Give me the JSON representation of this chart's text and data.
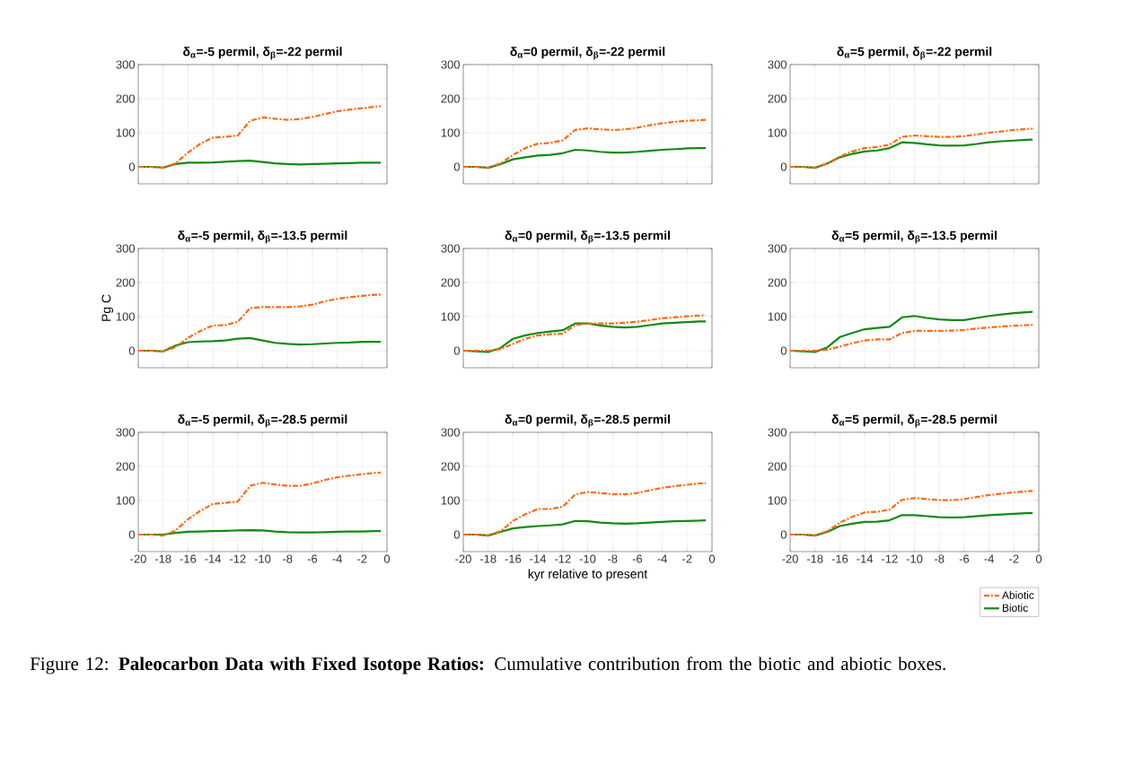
{
  "chart_data": [
    {
      "type": "line",
      "title": "δ$_{α}$=-5 permil, δ$_{β}$=-22 permil",
      "x": [
        -20,
        -19,
        -18,
        -17,
        -16,
        -15,
        -14,
        -13,
        -12,
        -11,
        -10,
        -9,
        -8,
        -7,
        -6,
        -5,
        -4,
        -3,
        -2,
        -1,
        -0.5
      ],
      "xlim": [
        -20,
        0
      ],
      "xticks": [
        -20,
        -18,
        -16,
        -14,
        -12,
        -10,
        -8,
        -6,
        -4,
        -2,
        0
      ],
      "ylim": [
        -50,
        300
      ],
      "yticks": [
        0,
        100,
        200,
        300
      ],
      "grid": true,
      "tick_labels": "y",
      "series": [
        {
          "color": "#ff6a13",
          "line_style": "dashed",
          "values": [
            0,
            0,
            -3,
            10,
            42,
            68,
            86,
            88,
            92,
            135,
            145,
            141,
            138,
            140,
            146,
            155,
            163,
            168,
            172,
            176,
            178
          ]
        },
        {
          "color": "#138a13",
          "line_style": "solid",
          "values": [
            0,
            0,
            -2,
            8,
            12,
            12,
            13,
            15,
            17,
            18,
            14,
            10,
            8,
            7,
            8,
            9,
            10,
            11,
            12,
            12,
            12
          ]
        }
      ],
      "annotations": [
        "Figure 12: **Paleocarbon Data with Fixed Isotope Ratios:** Cumulative contribution from the biotic and abiotic boxes."
      ]
    },
    {
      "type": "line",
      "title": "δ$_{α}$=0 permil, δ$_{β}$=-22 permil",
      "x": [
        -20,
        -19,
        -18,
        -17,
        -16,
        -15,
        -14,
        -13,
        -12,
        -11,
        -10,
        -9,
        -8,
        -7,
        -6,
        -5,
        -4,
        -3,
        -2,
        -1,
        -0.5
      ],
      "xlim": [
        -20,
        0
      ],
      "xticks": [
        -20,
        -18,
        -16,
        -14,
        -12,
        -10,
        -8,
        -6,
        -4,
        -2,
        0
      ],
      "ylim": [
        -50,
        300
      ],
      "yticks": [
        0,
        100,
        200,
        300
      ],
      "grid": true,
      "tick_labels": "y",
      "series": [
        {
          "color": "#ff6a13",
          "line_style": "dashed",
          "values": [
            0,
            0,
            -2,
            10,
            35,
            55,
            68,
            70,
            78,
            108,
            113,
            110,
            108,
            110,
            115,
            122,
            128,
            132,
            135,
            137,
            138
          ]
        },
        {
          "color": "#138a13",
          "line_style": "solid",
          "values": [
            0,
            0,
            -3,
            8,
            22,
            28,
            33,
            35,
            40,
            50,
            48,
            44,
            42,
            42,
            44,
            47,
            50,
            52,
            54,
            55,
            55
          ]
        }
      ]
    },
    {
      "type": "line",
      "title": "δ$_{α}$=5 permil, δ$_{β}$=-22 permil",
      "x": [
        -20,
        -19,
        -18,
        -17,
        -16,
        -15,
        -14,
        -13,
        -12,
        -11,
        -10,
        -9,
        -8,
        -7,
        -6,
        -5,
        -4,
        -3,
        -2,
        -1,
        -0.5
      ],
      "xlim": [
        -20,
        0
      ],
      "xticks": [
        -20,
        -18,
        -16,
        -14,
        -12,
        -10,
        -8,
        -6,
        -4,
        -2,
        0
      ],
      "ylim": [
        -50,
        300
      ],
      "yticks": [
        0,
        100,
        200,
        300
      ],
      "grid": true,
      "tick_labels": "y",
      "series": [
        {
          "color": "#ff6a13",
          "line_style": "dashed",
          "values": [
            0,
            0,
            -2,
            10,
            30,
            45,
            55,
            58,
            65,
            88,
            92,
            90,
            88,
            88,
            90,
            95,
            100,
            104,
            108,
            111,
            112
          ]
        },
        {
          "color": "#138a13",
          "line_style": "solid",
          "values": [
            0,
            0,
            -3,
            10,
            28,
            38,
            45,
            48,
            55,
            72,
            70,
            66,
            63,
            62,
            63,
            67,
            72,
            75,
            77,
            79,
            80
          ]
        }
      ]
    },
    {
      "type": "line",
      "title": "δ$_{α}$=-5 permil, δ$_{β}$=-13.5 permil",
      "ylabel": "Pg C",
      "x": [
        -20,
        -19,
        -18,
        -17,
        -16,
        -15,
        -14,
        -13,
        -12,
        -11,
        -10,
        -9,
        -8,
        -7,
        -6,
        -5,
        -4,
        -3,
        -2,
        -1,
        -0.5
      ],
      "xlim": [
        -20,
        0
      ],
      "xticks": [
        -20,
        -18,
        -16,
        -14,
        -12,
        -10,
        -8,
        -6,
        -4,
        -2,
        0
      ],
      "ylim": [
        -50,
        300
      ],
      "yticks": [
        0,
        100,
        200,
        300
      ],
      "grid": true,
      "tick_labels": "y",
      "series": [
        {
          "color": "#ff6a13",
          "line_style": "dashed",
          "values": [
            0,
            0,
            -2,
            10,
            38,
            58,
            74,
            75,
            85,
            125,
            128,
            128,
            128,
            130,
            135,
            145,
            152,
            157,
            161,
            164,
            165
          ]
        },
        {
          "color": "#138a13",
          "line_style": "solid",
          "values": [
            0,
            0,
            -2,
            15,
            25,
            27,
            28,
            30,
            35,
            37,
            30,
            23,
            20,
            18,
            19,
            21,
            23,
            24,
            26,
            26,
            26
          ]
        }
      ]
    },
    {
      "type": "line",
      "title": "δ$_{α}$=0 permil, δ$_{β}$=-13.5 permil",
      "x": [
        -20,
        -19,
        -18,
        -17,
        -16,
        -15,
        -14,
        -13,
        -12,
        -11,
        -10,
        -9,
        -8,
        -7,
        -6,
        -5,
        -4,
        -3,
        -2,
        -1,
        -0.5
      ],
      "xlim": [
        -20,
        0
      ],
      "xticks": [
        -20,
        -18,
        -16,
        -14,
        -12,
        -10,
        -8,
        -6,
        -4,
        -2,
        0
      ],
      "ylim": [
        -50,
        300
      ],
      "yticks": [
        0,
        100,
        200,
        300
      ],
      "grid": true,
      "tick_labels": "y",
      "series": [
        {
          "color": "#ff6a13",
          "line_style": "dashed",
          "values": [
            0,
            0,
            0,
            5,
            20,
            35,
            45,
            48,
            50,
            75,
            80,
            80,
            80,
            82,
            85,
            90,
            95,
            98,
            101,
            103,
            104
          ]
        },
        {
          "color": "#138a13",
          "line_style": "solid",
          "values": [
            0,
            -2,
            -4,
            8,
            35,
            45,
            52,
            56,
            60,
            80,
            80,
            74,
            70,
            68,
            70,
            75,
            80,
            82,
            84,
            86,
            86
          ]
        }
      ]
    },
    {
      "type": "line",
      "title": "δ$_{α}$=5 permil, δ$_{β}$=-13.5 permil",
      "x": [
        -20,
        -19,
        -18,
        -17,
        -16,
        -15,
        -14,
        -13,
        -12,
        -11,
        -10,
        -9,
        -8,
        -7,
        -6,
        -5,
        -4,
        -3,
        -2,
        -1,
        -0.5
      ],
      "xlim": [
        -20,
        0
      ],
      "xticks": [
        -20,
        -18,
        -16,
        -14,
        -12,
        -10,
        -8,
        -6,
        -4,
        -2,
        0
      ],
      "ylim": [
        -50,
        300
      ],
      "yticks": [
        0,
        100,
        200,
        300
      ],
      "grid": true,
      "tick_labels": "y",
      "series": [
        {
          "color": "#ff6a13",
          "line_style": "dashed",
          "values": [
            0,
            0,
            0,
            3,
            12,
            22,
            30,
            33,
            33,
            52,
            58,
            58,
            58,
            59,
            61,
            65,
            68,
            71,
            73,
            75,
            76
          ]
        },
        {
          "color": "#138a13",
          "line_style": "solid",
          "values": [
            0,
            -2,
            -4,
            10,
            40,
            52,
            63,
            67,
            70,
            98,
            102,
            96,
            92,
            90,
            90,
            96,
            102,
            106,
            110,
            113,
            114
          ]
        }
      ]
    },
    {
      "type": "line",
      "title": "δ$_{α}$=-5 permil, δ$_{β}$=-28.5 permil",
      "x": [
        -20,
        -19,
        -18,
        -17,
        -16,
        -15,
        -14,
        -13,
        -12,
        -11,
        -10,
        -9,
        -8,
        -7,
        -6,
        -5,
        -4,
        -3,
        -2,
        -1,
        -0.5
      ],
      "xlim": [
        -20,
        0
      ],
      "xticks": [
        -20,
        -18,
        -16,
        -14,
        -12,
        -10,
        -8,
        -6,
        -4,
        -2,
        0
      ],
      "ylim": [
        -50,
        300
      ],
      "yticks": [
        0,
        100,
        200,
        300
      ],
      "grid": true,
      "series": [
        {
          "color": "#ff6a13",
          "line_style": "dashed",
          "values": [
            0,
            0,
            -3,
            12,
            45,
            70,
            90,
            93,
            97,
            143,
            152,
            147,
            143,
            143,
            150,
            160,
            168,
            173,
            177,
            181,
            182
          ]
        },
        {
          "color": "#138a13",
          "line_style": "solid",
          "values": [
            0,
            0,
            0,
            5,
            8,
            9,
            10,
            11,
            12,
            13,
            12,
            9,
            7,
            6,
            6,
            7,
            8,
            9,
            9,
            10,
            10
          ]
        }
      ]
    },
    {
      "type": "line",
      "title": "δ$_{α}$=0 permil, δ$_{β}$=-28.5 permil",
      "xlabel": "kyr relative to present",
      "x": [
        -20,
        -19,
        -18,
        -17,
        -16,
        -15,
        -14,
        -13,
        -12,
        -11,
        -10,
        -9,
        -8,
        -7,
        -6,
        -5,
        -4,
        -3,
        -2,
        -1,
        -0.5
      ],
      "xlim": [
        -20,
        0
      ],
      "xticks": [
        -20,
        -18,
        -16,
        -14,
        -12,
        -10,
        -8,
        -6,
        -4,
        -2,
        0
      ],
      "ylim": [
        -50,
        300
      ],
      "yticks": [
        0,
        100,
        200,
        300
      ],
      "grid": true,
      "series": [
        {
          "color": "#ff6a13",
          "line_style": "dashed",
          "values": [
            0,
            0,
            -2,
            10,
            40,
            60,
            75,
            75,
            82,
            118,
            125,
            122,
            118,
            118,
            122,
            130,
            137,
            142,
            146,
            150,
            151
          ]
        },
        {
          "color": "#138a13",
          "line_style": "solid",
          "values": [
            0,
            0,
            -3,
            8,
            18,
            22,
            25,
            27,
            30,
            40,
            39,
            35,
            33,
            32,
            33,
            35,
            37,
            39,
            40,
            41,
            42
          ]
        }
      ]
    },
    {
      "type": "line",
      "title": "δ$_{α}$=5 permil, δ$_{β}$=-28.5 permil",
      "x": [
        -20,
        -19,
        -18,
        -17,
        -16,
        -15,
        -14,
        -13,
        -12,
        -11,
        -10,
        -9,
        -8,
        -7,
        -6,
        -5,
        -4,
        -3,
        -2,
        -1,
        -0.5
      ],
      "xlim": [
        -20,
        0
      ],
      "xticks": [
        -20,
        -18,
        -16,
        -14,
        -12,
        -10,
        -8,
        -6,
        -4,
        -2,
        0
      ],
      "ylim": [
        -50,
        300
      ],
      "yticks": [
        0,
        100,
        200,
        300
      ],
      "grid": true,
      "legend": "bottom right",
      "series": [
        {
          "name": "Abiotic",
          "color": "#ff6a13",
          "line_style": "dashed",
          "values": [
            0,
            0,
            -2,
            10,
            35,
            52,
            65,
            67,
            73,
            102,
            107,
            104,
            101,
            101,
            104,
            110,
            116,
            120,
            124,
            127,
            128
          ]
        },
        {
          "name": "Biotic",
          "color": "#138a13",
          "line_style": "solid",
          "values": [
            0,
            0,
            -3,
            8,
            25,
            32,
            37,
            38,
            42,
            57,
            57,
            54,
            51,
            50,
            51,
            54,
            57,
            59,
            61,
            63,
            63
          ]
        }
      ]
    }
  ]
}
